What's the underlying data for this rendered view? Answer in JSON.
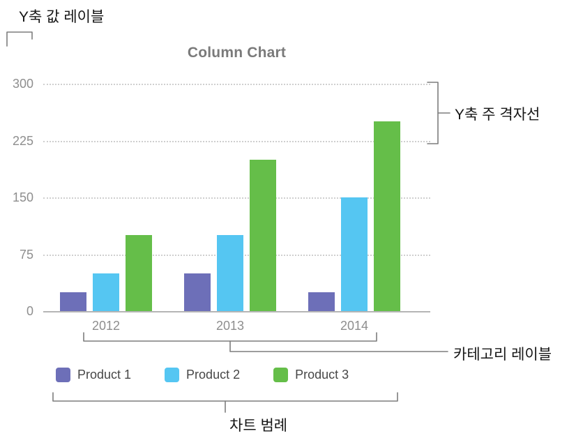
{
  "chart_data": {
    "type": "bar",
    "title": "Column Chart",
    "categories": [
      "2012",
      "2013",
      "2014"
    ],
    "series": [
      {
        "name": "Product 1",
        "color": "#6d6fb8",
        "values": [
          25,
          50,
          25
        ]
      },
      {
        "name": "Product 2",
        "color": "#55c6f2",
        "values": [
          50,
          100,
          150
        ]
      },
      {
        "name": "Product 3",
        "color": "#65be49",
        "values": [
          100,
          200,
          250
        ]
      }
    ],
    "ylim": [
      0,
      300
    ],
    "yticks": [
      300,
      225,
      150,
      75,
      0
    ],
    "grid": "horizontal dotted gridlines at each y tick, solid baseline",
    "legend_position": "bottom"
  },
  "annotations": {
    "y_value_label": "Y축 값 레이블",
    "y_gridlines_label": "Y축 주 격자선",
    "category_label": "카테고리 레이블",
    "legend_label": "차트 범례"
  },
  "colors": {
    "annotation_line": "#7d7d7d",
    "gridline": "#cfcfcf",
    "baseline": "#b5b5b5",
    "axis_text": "#8e8e8e",
    "title_text": "#7a7a7a",
    "legend_text": "#474747"
  }
}
